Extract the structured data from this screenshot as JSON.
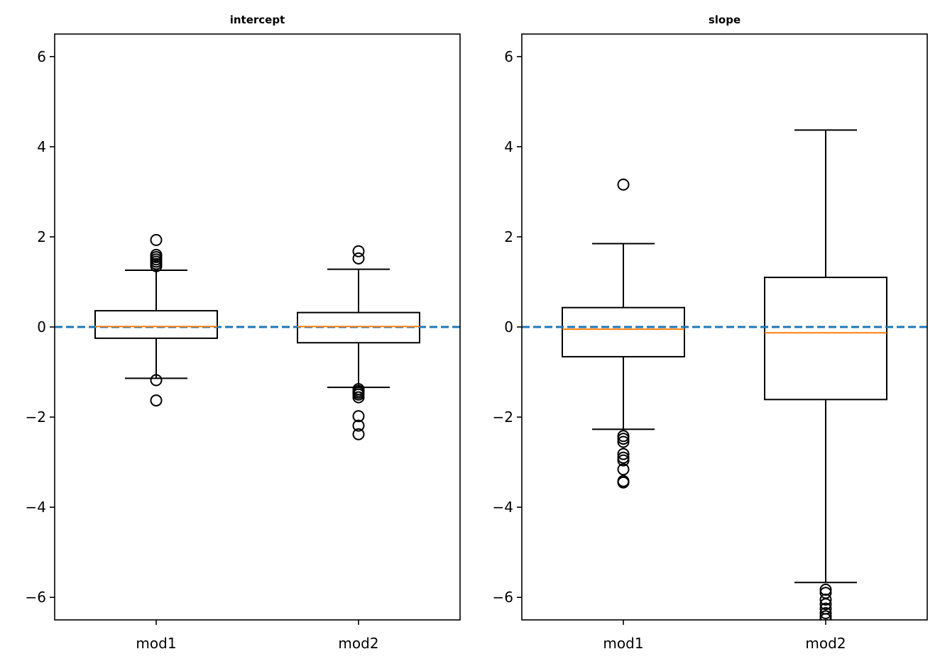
{
  "chart_data": [
    {
      "type": "box",
      "title": "intercept",
      "categories": [
        "mod1",
        "mod2"
      ],
      "ylim": [
        -6.5,
        6.5
      ],
      "yticks": [
        -6,
        -4,
        -2,
        0,
        2,
        4,
        6
      ],
      "ytick_labels": [
        "−6",
        "−4",
        "−2",
        "0",
        "2",
        "4",
        "6"
      ],
      "reference_line": 0,
      "boxes": [
        {
          "name": "mod1",
          "whisker_low": -1.14,
          "q1": -0.25,
          "median": 0.01,
          "q3": 0.36,
          "whisker_high": 1.26,
          "outliers": [
            1.93,
            1.6,
            1.55,
            1.5,
            1.45,
            1.4,
            1.35,
            -1.18,
            -1.63
          ]
        },
        {
          "name": "mod2",
          "whisker_low": -1.34,
          "q1": -0.35,
          "median": 0.01,
          "q3": 0.32,
          "whisker_high": 1.28,
          "outliers": [
            1.68,
            1.52,
            -1.38,
            -1.42,
            -1.46,
            -1.5,
            -1.56,
            -1.98,
            -2.19,
            -2.38
          ]
        }
      ]
    },
    {
      "type": "box",
      "title": "slope",
      "categories": [
        "mod1",
        "mod2"
      ],
      "ylim": [
        -6.5,
        6.5
      ],
      "yticks": [
        -6,
        -4,
        -2,
        0,
        2,
        4,
        6
      ],
      "ytick_labels": [
        "−6",
        "−4",
        "−2",
        "0",
        "2",
        "4",
        "6"
      ],
      "reference_line": 0,
      "boxes": [
        {
          "name": "mod1",
          "whisker_low": -2.27,
          "q1": -0.66,
          "median": -0.05,
          "q3": 0.43,
          "whisker_high": 1.85,
          "outliers": [
            3.16,
            -2.42,
            -2.48,
            -2.55,
            -2.82,
            -2.9,
            -2.96,
            -3.16,
            -3.42,
            -3.45
          ]
        },
        {
          "name": "mod2",
          "whisker_low": -5.67,
          "q1": -1.61,
          "median": -0.13,
          "q3": 1.1,
          "whisker_high": 4.37,
          "outliers": [
            -5.83,
            -5.9,
            -6.05,
            -6.15,
            -6.25,
            -6.35,
            -6.42,
            -6.48
          ]
        }
      ]
    }
  ]
}
